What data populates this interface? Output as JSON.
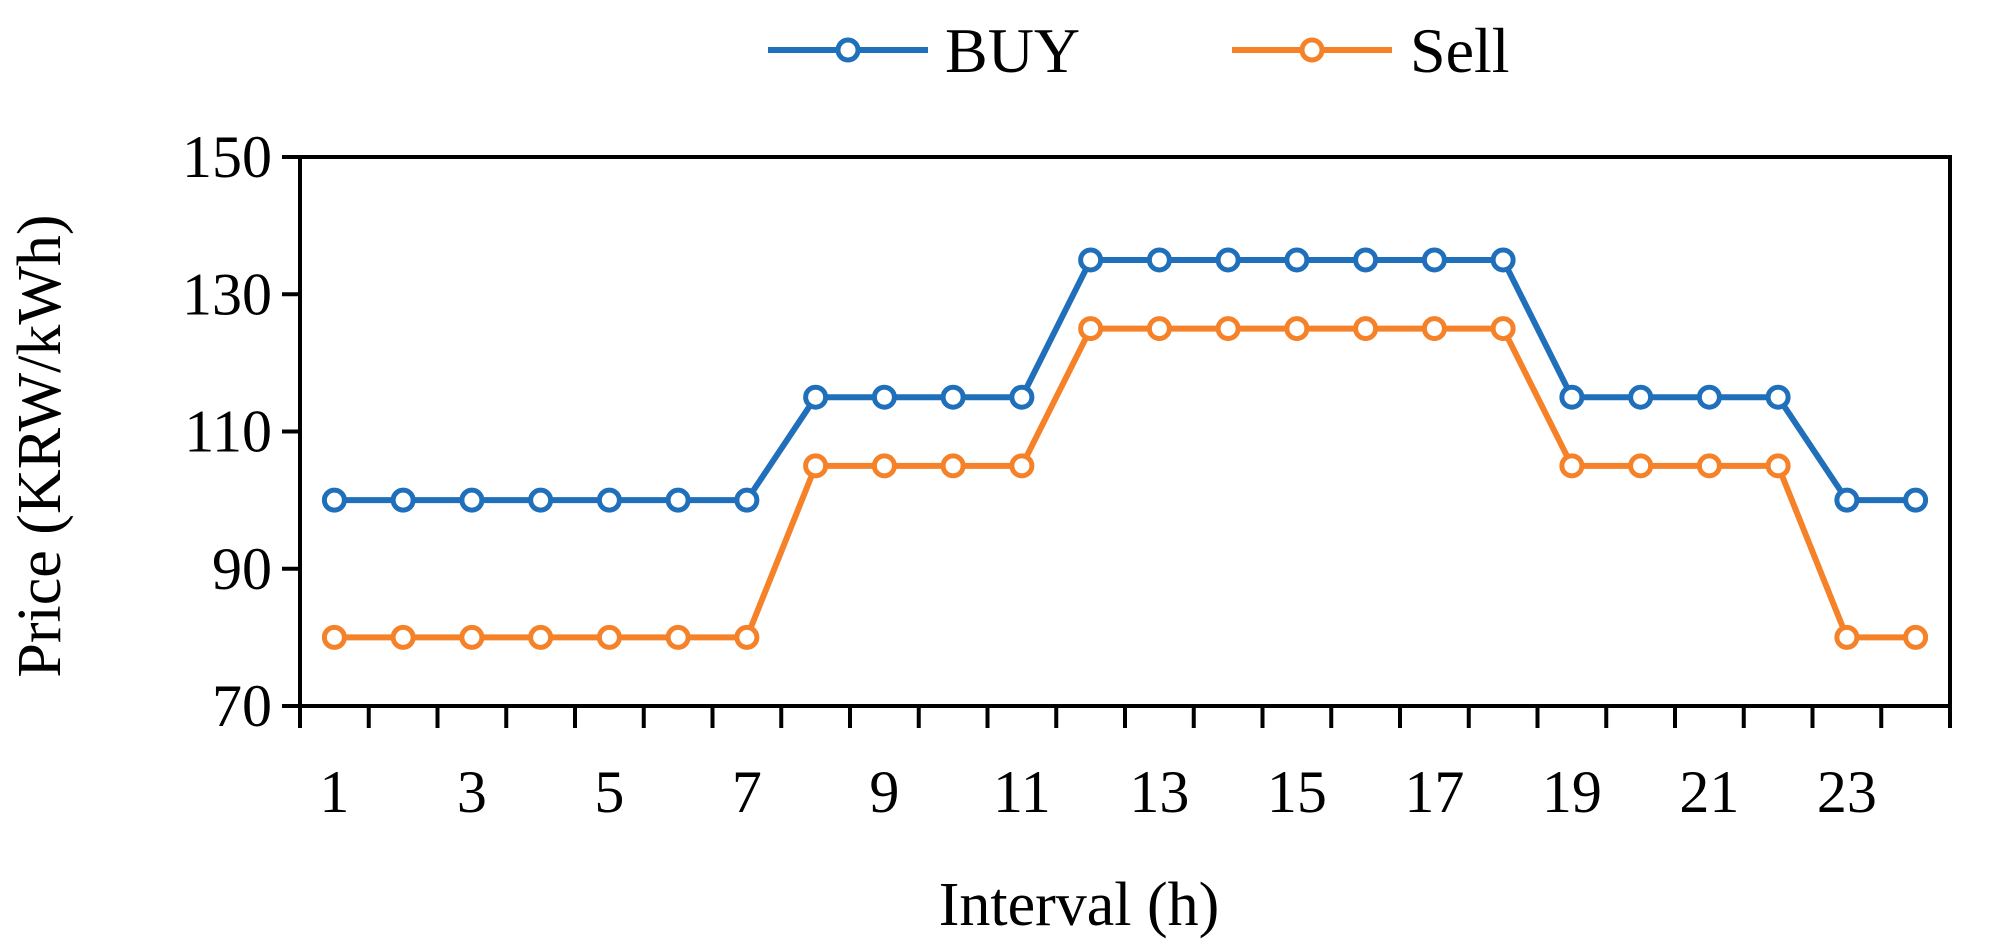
{
  "chart_data": {
    "type": "line",
    "title": "",
    "xlabel": "Interval (h)",
    "ylabel": "Price (KRW/kWh)",
    "x": [
      1,
      2,
      3,
      4,
      5,
      6,
      7,
      8,
      9,
      10,
      11,
      12,
      13,
      14,
      15,
      16,
      17,
      18,
      19,
      20,
      21,
      22,
      23,
      24
    ],
    "x_tick_labels": [
      "1",
      "3",
      "5",
      "7",
      "9",
      "11",
      "13",
      "15",
      "17",
      "19",
      "21",
      "23"
    ],
    "ylim": [
      70,
      150
    ],
    "y_ticks": [
      70,
      90,
      110,
      130,
      150
    ],
    "grid": false,
    "legend_position": "top-center",
    "series": [
      {
        "name": "BUY",
        "color": "#1f6fba",
        "marker": "circle",
        "values": [
          100,
          100,
          100,
          100,
          100,
          100,
          100,
          115,
          115,
          115,
          115,
          135,
          135,
          135,
          135,
          135,
          135,
          135,
          115,
          115,
          115,
          115,
          100,
          100
        ]
      },
      {
        "name": "Sell",
        "color": "#f58229",
        "marker": "circle",
        "values": [
          80,
          80,
          80,
          80,
          80,
          80,
          80,
          105,
          105,
          105,
          105,
          125,
          125,
          125,
          125,
          125,
          125,
          125,
          105,
          105,
          105,
          105,
          80,
          80
        ]
      }
    ]
  }
}
